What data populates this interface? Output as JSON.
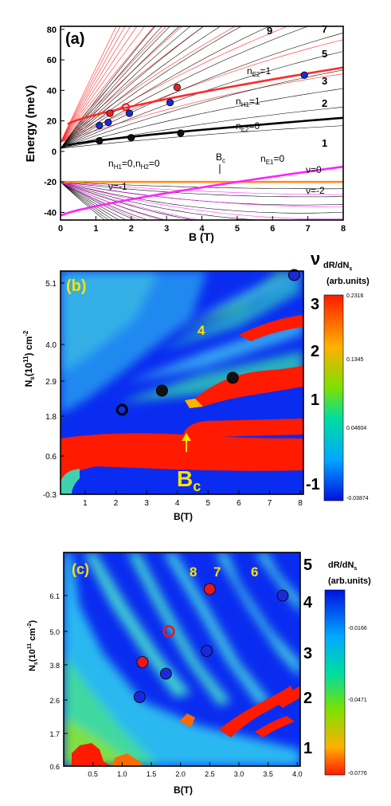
{
  "chart_data": [
    {
      "panel": "(a)",
      "type": "line",
      "ylabel": "Energy (meV)",
      "xlabel": "B (T)",
      "xlim": [
        0,
        8
      ],
      "ylim": [
        -45,
        82
      ],
      "x_ticks": [
        "0",
        "1",
        "2",
        "3",
        "4",
        "5",
        "6",
        "7",
        "8"
      ],
      "y_ticks": [
        "-40",
        "-20",
        "0",
        "20",
        "40",
        "60",
        "80"
      ],
      "annotations": {
        "right_labels": [
          "9",
          "7",
          "5",
          "3",
          "2",
          "1"
        ],
        "nE2_1": "n",
        "nE2_1_sub": "E2",
        "nE2_1_eq": "=1",
        "nH1_1": "n",
        "nH1_1_sub": "H1",
        "nH1_1_eq": "=1",
        "nE2_0": "n",
        "nE2_0_sub": "E2",
        "nE2_0_eq": "=0",
        "nH": "n",
        "nH_sub1": "H1",
        "nH_mid": "=0,n",
        "nH_sub2": "H2",
        "nH_eq": "=0",
        "Bc": "B",
        "Bc_sub": "c",
        "nE1_0": "n",
        "nE1_0_sub": "E1",
        "nE1_0_eq": "=0",
        "nu0": "ν=0",
        "nu_m1": "ν=-1",
        "nu_m2": "ν=-2"
      },
      "key_lines": [
        {
          "name": "nE2=1",
          "color": "#ff2a2a",
          "x": [
            0.2,
            8
          ],
          "y": [
            18,
            55
          ]
        },
        {
          "name": "nE2=0",
          "color": "#000000",
          "x": [
            0.2,
            8
          ],
          "y": [
            4,
            22
          ]
        },
        {
          "name": "orange",
          "color": "#ff8c1a",
          "x": [
            0,
            8
          ],
          "y": [
            -20,
            -20
          ]
        },
        {
          "name": "magenta",
          "color": "#ff22ff",
          "x": [
            0,
            8
          ],
          "y": [
            -42,
            -10
          ]
        }
      ],
      "points": [
        {
          "x": 1.1,
          "y": 17,
          "color": "blue"
        },
        {
          "x": 1.35,
          "y": 19,
          "color": "blue"
        },
        {
          "x": 1.4,
          "y": 25,
          "color": "red"
        },
        {
          "x": 1.85,
          "y": 29,
          "color": "red",
          "open": true
        },
        {
          "x": 1.95,
          "y": 25,
          "color": "blue"
        },
        {
          "x": 3.1,
          "y": 32,
          "color": "blue"
        },
        {
          "x": 3.3,
          "y": 42,
          "color": "red"
        },
        {
          "x": 6.9,
          "y": 50,
          "color": "blue"
        },
        {
          "x": 1.1,
          "y": 7,
          "color": "black"
        },
        {
          "x": 2.0,
          "y": 9,
          "color": "black"
        },
        {
          "x": 3.4,
          "y": 12,
          "color": "black"
        }
      ]
    },
    {
      "panel": "(b)",
      "type": "heatmap",
      "ylabel": "N",
      "ylabel_sub": "s",
      "ylabel_rest": "(10",
      "ylabel_sup": "11",
      "ylabel_end": ") cm",
      "ylabel_sup2": "-2",
      "xlabel": "B(T)",
      "x_ticks": [
        "1",
        "2",
        "3",
        "4",
        "5",
        "6",
        "7",
        "8"
      ],
      "y_ticks": [
        "5.1",
        "4.0",
        "2.9",
        "1.8",
        "0.6",
        "-0.3"
      ],
      "nu_label": "ν",
      "nu_ticks": [
        "3",
        "2",
        "1",
        "-1"
      ],
      "colorbar_title": "dR/dN",
      "colorbar_title_sub": "s",
      "colorbar_unit": "(arb.units)",
      "colorbar_ticks": [
        "0.2316",
        "0.1345",
        "0.04604",
        "-0.03874"
      ],
      "label_4": "4",
      "Bc": "B",
      "Bc_sub": "c",
      "points": [
        {
          "B": 7.8,
          "N": 5.6,
          "color": "blue"
        },
        {
          "B": 3.5,
          "N": 2.6,
          "color": "black"
        },
        {
          "B": 5.8,
          "N": 3.0,
          "color": "black"
        },
        {
          "B": 2.2,
          "N": 2.0,
          "color": "black",
          "open": true
        }
      ]
    },
    {
      "panel": "(c)",
      "type": "heatmap",
      "ylabel": "N",
      "ylabel_sub": "s",
      "ylabel_rest": "(10",
      "ylabel_sup": "11",
      "ylabel_end": " cm",
      "ylabel_sup2": "-2",
      "ylabel_close": ")",
      "xlabel": "B(T)",
      "x_ticks": [
        "0.5",
        "1.0",
        "1.5",
        "2.0",
        "2.5",
        "3.0",
        "3.5",
        "4.0"
      ],
      "y_ticks": [
        "6.1",
        "5.0",
        "3.8",
        "2.6",
        "1.7",
        "0.6"
      ],
      "nu_ticks": [
        "5",
        "4",
        "3",
        "2",
        "1"
      ],
      "labels_top": [
        "8",
        "7",
        "6"
      ],
      "colorbar_title": "dR/dN",
      "colorbar_title_sub": "s",
      "colorbar_unit": "(arb.units)",
      "colorbar_ticks": [
        "-0.0166",
        "-0.0471",
        "-0.0776"
      ],
      "points": [
        {
          "B": 2.5,
          "N": 6.3,
          "color": "red"
        },
        {
          "B": 3.75,
          "N": 6.1,
          "color": "blue"
        },
        {
          "B": 1.8,
          "N": 5.0,
          "color": "red",
          "open": true
        },
        {
          "B": 2.45,
          "N": 4.3,
          "color": "blue"
        },
        {
          "B": 1.35,
          "N": 3.9,
          "color": "red"
        },
        {
          "B": 1.75,
          "N": 3.5,
          "color": "blue"
        },
        {
          "B": 1.3,
          "N": 2.7,
          "color": "blue"
        }
      ]
    }
  ]
}
